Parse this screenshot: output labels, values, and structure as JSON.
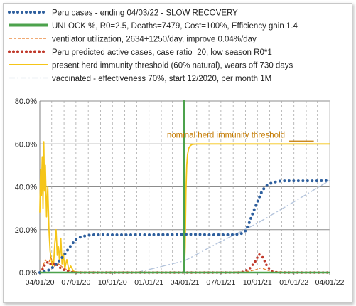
{
  "chart_data": {
    "type": "line",
    "legend": [
      {
        "label": "Peru cases - ending 04/03/22 - SLOW RECOVERY",
        "color": "#2e5f9e",
        "style": "dotted"
      },
      {
        "label": "UNLOCK %, R0=2.5,  Deaths=7479, Cost=100%, Efficiency gain 1.4",
        "color": "#4ca24c",
        "style": "thick"
      },
      {
        "label": "ventilator utilization, 2634+1250/day, improve 0.04%/day",
        "color": "#e87722",
        "style": "dashed"
      },
      {
        "label": "Peru predicted active cases, case ratio=20, low season R0*1",
        "color": "#c0392b",
        "style": "dotted"
      },
      {
        "label": "present herd immunity threshold (60% natural), wears off 730 days",
        "color": "#f5c518",
        "style": "solid"
      },
      {
        "label": "vaccinated - effectiveness 70%, start 12/2020, per month 1M",
        "color": "#b4c4dc",
        "style": "dashdot"
      }
    ],
    "y_ticks": [
      "0.0%",
      "20.0%",
      "40.0%",
      "60.0%",
      "80.0%"
    ],
    "y_range": [
      0,
      80
    ],
    "x_ticks": [
      "04/01/20",
      "07/01/20",
      "10/01/20",
      "01/01/21",
      "04/01/21",
      "07/01/21",
      "10/01/21",
      "01/01/22",
      "04/01/22"
    ],
    "x_range": [
      "2020-04-01",
      "2022-04-01"
    ],
    "annotation": "nominal herd immunity threshold",
    "grid": "vertical dashed gridlines",
    "series": {
      "peru_cases": {
        "x": [
          "2020-04-01",
          "2020-04-10",
          "2020-04-20",
          "2020-05-01",
          "2020-05-10",
          "2020-05-20",
          "2020-06-01",
          "2020-06-10",
          "2020-06-20",
          "2020-07-01",
          "2020-07-15",
          "2020-08-01",
          "2020-08-15",
          "2020-09-01",
          "2020-10-01",
          "2020-11-01",
          "2020-12-01",
          "2021-01-01",
          "2021-02-01",
          "2021-03-01",
          "2021-04-01",
          "2021-05-01",
          "2021-06-01",
          "2021-07-01",
          "2021-08-01",
          "2021-08-20",
          "2021-09-01",
          "2021-09-10",
          "2021-09-20",
          "2021-10-01",
          "2021-10-10",
          "2021-10-20",
          "2021-11-01",
          "2021-11-20",
          "2021-12-01",
          "2022-01-01",
          "2022-02-01",
          "2022-03-01",
          "2022-04-01"
        ],
        "y": [
          0,
          0.3,
          0.8,
          2,
          3.5,
          5.5,
          8,
          10.5,
          13,
          15.5,
          16.8,
          17.4,
          17.6,
          17.6,
          17.6,
          17.6,
          17.6,
          17.6,
          17.7,
          17.7,
          17.8,
          17.8,
          17.6,
          17.6,
          17.7,
          18,
          19.5,
          23,
          28,
          33,
          37,
          40,
          41.5,
          42.5,
          42.8,
          42.8,
          42.8,
          42.8,
          42.9
        ]
      },
      "unlock": {
        "x": [
          "2020-04-01",
          "2021-03-29",
          "2021-03-29",
          "2021-03-31",
          "2021-03-31",
          "2022-04-01"
        ],
        "y": [
          0,
          0,
          80,
          80,
          0,
          0
        ]
      },
      "ventilator": {
        "x": [
          "2020-04-01",
          "2020-04-08",
          "2020-04-15",
          "2020-04-22",
          "2020-04-29",
          "2020-05-08",
          "2020-05-18",
          "2020-06-01",
          "2020-06-15",
          "2020-07-01",
          "2021-04-01",
          "2021-09-01",
          "2021-09-25",
          "2021-10-10",
          "2021-10-25",
          "2021-11-05",
          "2022-04-01"
        ],
        "y": [
          0,
          2.5,
          6,
          4,
          7,
          3,
          4,
          2,
          0.8,
          0.3,
          0.2,
          0.3,
          1.2,
          2.2,
          1.2,
          0.4,
          0.1
        ]
      },
      "predicted_active": {
        "x": [
          "2020-04-01",
          "2020-04-08",
          "2020-04-15",
          "2020-04-22",
          "2020-05-01",
          "2020-05-10",
          "2020-05-20",
          "2020-06-01",
          "2020-06-15",
          "2020-07-01",
          "2021-04-01",
          "2021-08-20",
          "2021-09-10",
          "2021-09-25",
          "2021-10-05",
          "2021-10-15",
          "2021-10-25",
          "2021-11-05",
          "2021-11-20",
          "2022-04-01"
        ],
        "y": [
          0,
          1.5,
          4,
          5,
          3.5,
          4.5,
          2.5,
          1.2,
          0.3,
          0,
          0,
          0,
          1.5,
          5,
          8.5,
          7,
          3,
          0.8,
          0,
          0
        ]
      },
      "herd_threshold": {
        "x": [
          "2020-04-01",
          "2020-04-03",
          "2020-04-05",
          "2020-04-07",
          "2020-04-09",
          "2020-04-11",
          "2020-04-13",
          "2020-04-15",
          "2020-04-18",
          "2020-04-21",
          "2020-04-24",
          "2020-04-27",
          "2020-04-30",
          "2020-05-03",
          "2020-05-06",
          "2020-05-09",
          "2020-05-12",
          "2020-05-15",
          "2020-05-18",
          "2020-05-21",
          "2020-05-24",
          "2020-05-27",
          "2020-05-30",
          "2020-06-03",
          "2020-06-08",
          "2020-06-13",
          "2020-06-18",
          "2020-06-25",
          "2020-07-01",
          "2020-08-01",
          "2021-03-31",
          "2021-04-02",
          "2021-04-04",
          "2021-04-06",
          "2021-04-08",
          "2021-04-11",
          "2021-04-15",
          "2021-04-20",
          "2021-05-01",
          "2022-04-01"
        ],
        "y": [
          28,
          48,
          36,
          54,
          30,
          61,
          38,
          50,
          26,
          40,
          20,
          10,
          6,
          3,
          5,
          14,
          20,
          8,
          12,
          5,
          16,
          4,
          9,
          2,
          6,
          1.5,
          3,
          0.6,
          0.3,
          0,
          0,
          12,
          38,
          50,
          55,
          58,
          59.2,
          59.8,
          60,
          60
        ]
      },
      "vaccinated": {
        "x": [
          "2020-12-01",
          "2021-04-01",
          "2021-07-01",
          "2021-10-01",
          "2022-01-01",
          "2022-04-01"
        ],
        "y": [
          0,
          5.5,
          14.5,
          23,
          33,
          43
        ]
      },
      "nominal_line": {
        "x": [
          "2021-03-31",
          "2022-04-01"
        ],
        "y": [
          60,
          60
        ]
      }
    }
  }
}
